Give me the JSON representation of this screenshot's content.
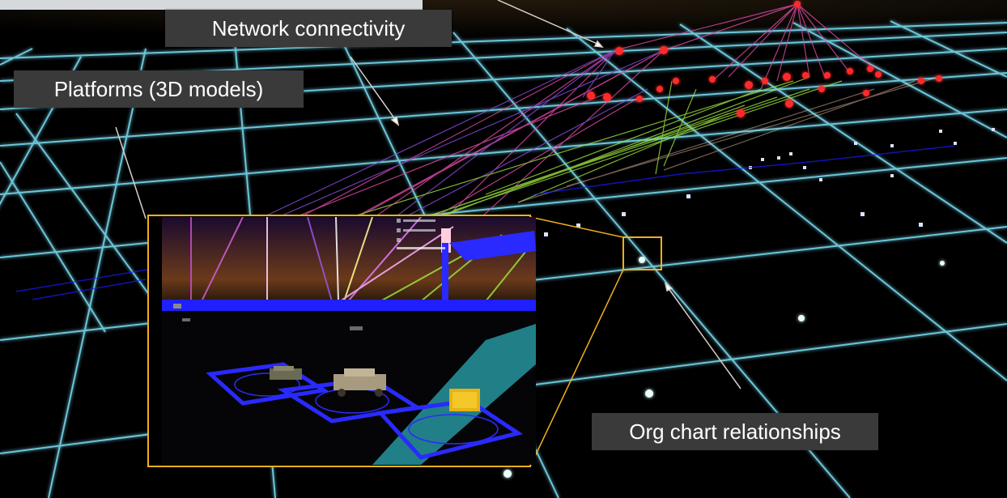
{
  "callouts": {
    "network": "Network connectivity",
    "platforms": "Platforms (3D models)",
    "org_chart": "Org chart relationships"
  },
  "topbar": {
    "text": ""
  },
  "colors": {
    "background": "#000000",
    "grid": "#7fe8ff",
    "highlight": "#f2b01e",
    "callout_bg": "#3a3a3a",
    "callout_text": "#ffffff",
    "org_lines": "#1a1aff",
    "link_pink": "#e04aa8",
    "link_green": "#9be23c",
    "link_purple": "#8a4bdc",
    "node": "#ff2a2a"
  },
  "icons": [
    "network-node-icon",
    "platform-marker-icon",
    "vehicle-model"
  ]
}
